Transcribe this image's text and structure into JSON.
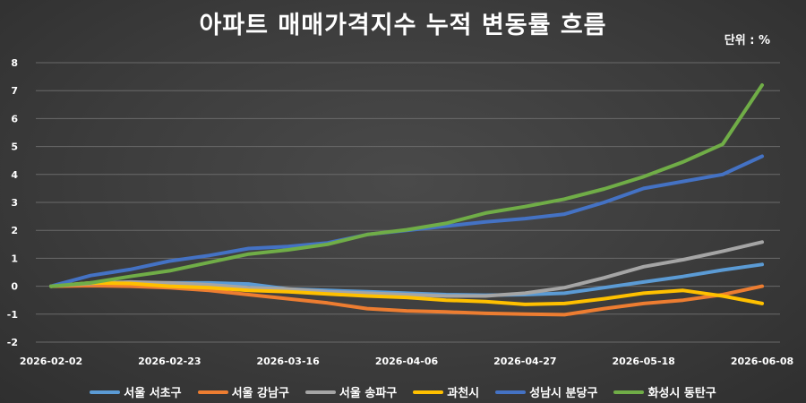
{
  "chart_data": {
    "type": "line",
    "title": "아파트 매매가격지수 누적 변동률 흐름",
    "unit": "단위 : %",
    "xlabel": "",
    "ylabel": "",
    "ylim": [
      -2,
      8
    ],
    "yticks": [
      -2,
      -1,
      0,
      1,
      2,
      3,
      4,
      5,
      6,
      7,
      8
    ],
    "grid": true,
    "legend": "bottom",
    "x": [
      "2026-02-02",
      "2026-02-09",
      "2026-02-16",
      "2026-02-23",
      "2026-03-02",
      "2026-03-09",
      "2026-03-16",
      "2026-03-23",
      "2026-03-30",
      "2026-04-06",
      "2026-04-13",
      "2026-04-20",
      "2026-04-27",
      "2026-05-04",
      "2026-05-11",
      "2026-05-18",
      "2026-05-25",
      "2026-06-01",
      "2026-06-08"
    ],
    "xtick_labels": [
      "2026-02-02",
      "2026-02-23",
      "2026-03-16",
      "2026-04-06",
      "2026-04-27",
      "2026-05-18",
      "2026-06-08"
    ],
    "series": [
      {
        "name": "서울 서초구",
        "color": "#5B9BD5",
        "values": [
          0,
          0.05,
          0.1,
          0.12,
          0.12,
          0.08,
          -0.1,
          -0.15,
          -0.2,
          -0.25,
          -0.3,
          -0.32,
          -0.3,
          -0.25,
          -0.05,
          0.15,
          0.35,
          0.58,
          0.78
        ]
      },
      {
        "name": "서울 강남구",
        "color": "#ED7D31",
        "values": [
          0,
          0.02,
          0.0,
          -0.05,
          -0.15,
          -0.3,
          -0.45,
          -0.6,
          -0.8,
          -0.88,
          -0.92,
          -0.97,
          -1.0,
          -1.02,
          -0.8,
          -0.62,
          -0.5,
          -0.3,
          0.0
        ]
      },
      {
        "name": "서울 송파구",
        "color": "#A5A5A5",
        "values": [
          0,
          0.1,
          0.15,
          0.12,
          0.05,
          -0.05,
          -0.1,
          -0.2,
          -0.25,
          -0.3,
          -0.35,
          -0.35,
          -0.25,
          -0.05,
          0.3,
          0.7,
          0.95,
          1.25,
          1.58
        ]
      },
      {
        "name": "과천시",
        "color": "#FFC000",
        "values": [
          0,
          0.12,
          0.1,
          0.0,
          -0.05,
          -0.15,
          -0.2,
          -0.28,
          -0.35,
          -0.4,
          -0.5,
          -0.55,
          -0.65,
          -0.62,
          -0.45,
          -0.25,
          -0.15,
          -0.35,
          -0.62
        ]
      },
      {
        "name": "성남시 분당구",
        "color": "#4472C4",
        "values": [
          0,
          0.38,
          0.6,
          0.9,
          1.1,
          1.35,
          1.42,
          1.55,
          1.85,
          2.0,
          2.15,
          2.3,
          2.42,
          2.58,
          3.0,
          3.5,
          3.75,
          4.0,
          4.65
        ]
      },
      {
        "name": "화성시 동탄구",
        "color": "#70AD47",
        "values": [
          0,
          0.12,
          0.35,
          0.55,
          0.85,
          1.15,
          1.3,
          1.5,
          1.85,
          2.02,
          2.25,
          2.62,
          2.85,
          3.12,
          3.48,
          3.92,
          4.45,
          5.08,
          7.2
        ]
      }
    ]
  }
}
